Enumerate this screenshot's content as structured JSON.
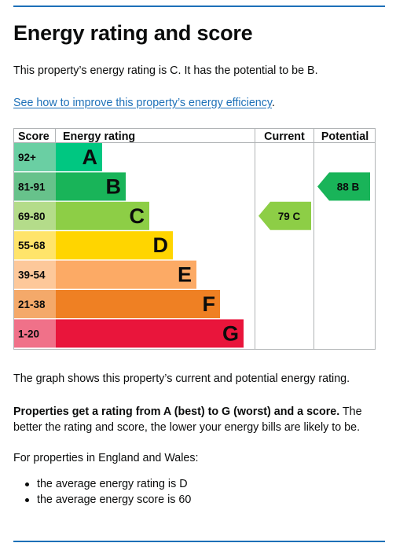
{
  "title": "Energy rating and score",
  "intro": "This property’s energy rating is C. It has the potential to be B.",
  "link_text": "See how to improve this property’s energy efficiency",
  "link_suffix": ".",
  "graph": {
    "headers": {
      "score": "Score",
      "rating": "Energy rating",
      "current": "Current",
      "potential": "Potential"
    },
    "bands": [
      {
        "score": "92+",
        "letter": "A",
        "color": "#00c781",
        "score_bg": "#6acfa3"
      },
      {
        "score": "81-91",
        "letter": "B",
        "color": "#19b459",
        "score_bg": "#67c28b"
      },
      {
        "score": "69-80",
        "letter": "C",
        "color": "#8dce46",
        "score_bg": "#b4dc8a"
      },
      {
        "score": "55-68",
        "letter": "D",
        "color": "#ffd500",
        "score_bg": "#ffe46a"
      },
      {
        "score": "39-54",
        "letter": "E",
        "color": "#fcaa65",
        "score_bg": "#fdc89a"
      },
      {
        "score": "21-38",
        "letter": "F",
        "color": "#ef8023",
        "score_bg": "#f4a96a"
      },
      {
        "score": "1-20",
        "letter": "G",
        "color": "#e9153b",
        "score_bg": "#f07189"
      }
    ],
    "current": {
      "value": 79,
      "letter": "C",
      "label": "79  C",
      "color": "#8dce46"
    },
    "potential": {
      "value": 88,
      "letter": "B",
      "label": "88  B",
      "color": "#19b459"
    }
  },
  "graph_caption": "The graph shows this property’s current and potential energy rating.",
  "explain_bold": "Properties get a rating from A (best) to G (worst) and a score.",
  "explain_rest": " The better the rating and score, the lower your energy bills are likely to be.",
  "region_note": "For properties in England and Wales:",
  "averages": [
    "the average energy rating is D",
    "the average energy score is 60"
  ]
}
